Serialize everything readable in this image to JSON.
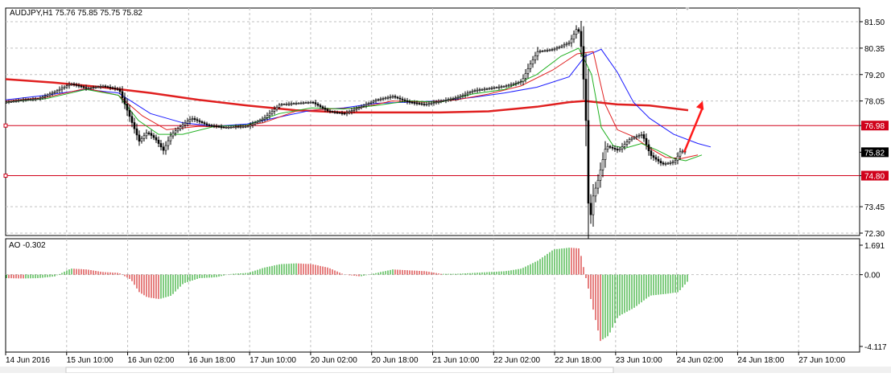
{
  "chart_data": [
    {
      "type": "candlestick",
      "title": "AUDJPY,H1  75.76 75.85 75.75 75.82",
      "symbol": "AUDJPY",
      "timeframe": "H1",
      "ohlc_header": {
        "open": 75.76,
        "high": 75.85,
        "low": 75.75,
        "close": 75.82
      },
      "ylim": [
        72.3,
        81.5
      ],
      "y_ticks": [
        "81.50",
        "80.35",
        "79.20",
        "78.05",
        "76.98",
        "75.82",
        "74.80",
        "73.45",
        "72.30"
      ],
      "current_price": "75.82",
      "levels": [
        {
          "label": "76.98",
          "value": 76.98,
          "color": "#d0021b"
        },
        {
          "label": "74.80",
          "value": 74.8,
          "color": "#d0021b"
        }
      ],
      "price_path": [
        [
          0,
          78.0
        ],
        [
          20,
          78.1
        ],
        [
          40,
          78.15
        ],
        [
          60,
          78.45
        ],
        [
          80,
          78.8
        ],
        [
          100,
          78.6
        ],
        [
          120,
          78.7
        ],
        [
          140,
          78.55
        ],
        [
          155,
          77.2
        ],
        [
          165,
          76.3
        ],
        [
          175,
          76.7
        ],
        [
          185,
          76.4
        ],
        [
          195,
          75.9
        ],
        [
          205,
          76.6
        ],
        [
          215,
          76.9
        ],
        [
          230,
          77.3
        ],
        [
          250,
          77.0
        ],
        [
          270,
          76.9
        ],
        [
          300,
          76.95
        ],
        [
          320,
          77.3
        ],
        [
          340,
          77.9
        ],
        [
          360,
          77.95
        ],
        [
          380,
          78.0
        ],
        [
          400,
          77.6
        ],
        [
          420,
          77.5
        ],
        [
          440,
          77.8
        ],
        [
          460,
          78.1
        ],
        [
          480,
          78.25
        ],
        [
          500,
          78.0
        ],
        [
          520,
          77.9
        ],
        [
          540,
          78.05
        ],
        [
          560,
          78.2
        ],
        [
          580,
          78.5
        ],
        [
          600,
          78.6
        ],
        [
          620,
          78.7
        ],
        [
          640,
          78.9
        ],
        [
          650,
          79.6
        ],
        [
          660,
          80.2
        ],
        [
          680,
          80.3
        ],
        [
          700,
          80.6
        ],
        [
          710,
          81.3
        ],
        [
          715,
          80.2
        ],
        [
          720,
          77.2
        ],
        [
          724,
          72.4
        ],
        [
          728,
          73.8
        ],
        [
          735,
          74.6
        ],
        [
          745,
          76.1
        ],
        [
          760,
          75.9
        ],
        [
          775,
          76.4
        ],
        [
          790,
          76.6
        ],
        [
          800,
          75.7
        ],
        [
          815,
          75.3
        ],
        [
          830,
          75.4
        ],
        [
          838,
          75.9
        ],
        [
          843,
          75.82
        ]
      ],
      "moving_averages": [
        {
          "color": "#e02020",
          "points": [
            [
              0,
              79.0
            ],
            [
              60,
              78.85
            ],
            [
              120,
              78.65
            ],
            [
              180,
              78.4
            ],
            [
              240,
              78.1
            ],
            [
              300,
              77.85
            ],
            [
              360,
              77.65
            ],
            [
              420,
              77.55
            ],
            [
              480,
              77.55
            ],
            [
              540,
              77.55
            ],
            [
              600,
              77.6
            ],
            [
              660,
              77.8
            ],
            [
              700,
              78.0
            ],
            [
              720,
              78.05
            ],
            [
              760,
              77.9
            ],
            [
              800,
              77.85
            ],
            [
              848,
              77.65
            ]
          ]
        },
        {
          "color": "#1a1aff",
          "points": [
            [
              0,
              78.1
            ],
            [
              50,
              78.3
            ],
            [
              100,
              78.55
            ],
            [
              140,
              78.4
            ],
            [
              180,
              77.5
            ],
            [
              220,
              77.1
            ],
            [
              260,
              76.95
            ],
            [
              300,
              77.05
            ],
            [
              340,
              77.35
            ],
            [
              380,
              77.65
            ],
            [
              420,
              77.75
            ],
            [
              460,
              77.95
            ],
            [
              500,
              78.0
            ],
            [
              540,
              78.05
            ],
            [
              580,
              78.2
            ],
            [
              620,
              78.4
            ],
            [
              660,
              78.65
            ],
            [
              700,
              79.1
            ],
            [
              720,
              80.0
            ],
            [
              740,
              80.3
            ],
            [
              760,
              79.3
            ],
            [
              780,
              78.0
            ],
            [
              800,
              77.3
            ],
            [
              830,
              76.6
            ],
            [
              860,
              76.2
            ],
            [
              876,
              76.05
            ]
          ]
        },
        {
          "color": "#e02020",
          "points": [
            [
              0,
              78.05
            ],
            [
              50,
              78.2
            ],
            [
              100,
              78.6
            ],
            [
              140,
              78.3
            ],
            [
              170,
              77.4
            ],
            [
              200,
              76.8
            ],
            [
              240,
              76.95
            ],
            [
              280,
              76.9
            ],
            [
              320,
              77.1
            ],
            [
              360,
              77.6
            ],
            [
              400,
              77.7
            ],
            [
              440,
              77.75
            ],
            [
              480,
              78.05
            ],
            [
              520,
              78.0
            ],
            [
              560,
              78.1
            ],
            [
              600,
              78.35
            ],
            [
              640,
              78.7
            ],
            [
              680,
              79.4
            ],
            [
              710,
              80.1
            ],
            [
              730,
              80.2
            ],
            [
              745,
              77.9
            ],
            [
              760,
              76.8
            ],
            [
              780,
              76.5
            ],
            [
              800,
              76.0
            ],
            [
              820,
              75.6
            ],
            [
              840,
              75.55
            ],
            [
              860,
              75.7
            ]
          ]
        },
        {
          "color": "#20b020",
          "points": [
            [
              0,
              78.0
            ],
            [
              50,
              78.15
            ],
            [
              100,
              78.55
            ],
            [
              140,
              78.3
            ],
            [
              165,
              77.2
            ],
            [
              190,
              76.6
            ],
            [
              220,
              76.6
            ],
            [
              260,
              76.95
            ],
            [
              300,
              77.0
            ],
            [
              340,
              77.5
            ],
            [
              380,
              77.75
            ],
            [
              420,
              77.7
            ],
            [
              460,
              77.85
            ],
            [
              500,
              78.05
            ],
            [
              540,
              78.0
            ],
            [
              580,
              78.35
            ],
            [
              620,
              78.55
            ],
            [
              660,
              79.2
            ],
            [
              690,
              80.0
            ],
            [
              712,
              80.35
            ],
            [
              728,
              79.2
            ],
            [
              740,
              76.9
            ],
            [
              755,
              76.1
            ],
            [
              770,
              76.0
            ],
            [
              790,
              76.2
            ],
            [
              810,
              75.9
            ],
            [
              830,
              75.55
            ],
            [
              845,
              75.45
            ],
            [
              865,
              75.7
            ]
          ]
        }
      ],
      "annotation_arrow": {
        "color": "#ff1a1a",
        "from": [
          843,
          75.82
        ],
        "to": [
          866,
          78.05
        ]
      }
    },
    {
      "type": "bar",
      "title": "AO -0.302",
      "indicator": "AO",
      "value": -0.302,
      "ylim": [
        -4.117,
        1.691
      ],
      "y_ticks": [
        "1.691",
        "0.00",
        "-4.117"
      ],
      "series": [
        {
          "up_color": "#009900",
          "down_color": "#cc0000",
          "points": [
            [
              0,
              -0.2
            ],
            [
              20,
              -0.22
            ],
            [
              40,
              -0.2
            ],
            [
              60,
              -0.1
            ],
            [
              80,
              0.35
            ],
            [
              100,
              0.3
            ],
            [
              120,
              0.15
            ],
            [
              140,
              0.1
            ],
            [
              155,
              -0.3
            ],
            [
              165,
              -1.0
            ],
            [
              175,
              -1.3
            ],
            [
              190,
              -1.4
            ],
            [
              205,
              -1.2
            ],
            [
              220,
              -0.5
            ],
            [
              240,
              -0.2
            ],
            [
              260,
              -0.15
            ],
            [
              280,
              0.05
            ],
            [
              300,
              0.1
            ],
            [
              320,
              0.4
            ],
            [
              340,
              0.6
            ],
            [
              360,
              0.65
            ],
            [
              380,
              0.6
            ],
            [
              400,
              0.4
            ],
            [
              420,
              0.0
            ],
            [
              440,
              -0.1
            ],
            [
              460,
              0.1
            ],
            [
              480,
              0.3
            ],
            [
              500,
              0.25
            ],
            [
              520,
              0.2
            ],
            [
              540,
              0.05
            ],
            [
              560,
              0.05
            ],
            [
              580,
              0.1
            ],
            [
              600,
              0.15
            ],
            [
              620,
              0.2
            ],
            [
              640,
              0.35
            ],
            [
              660,
              0.8
            ],
            [
              680,
              1.45
            ],
            [
              700,
              1.55
            ],
            [
              712,
              1.5
            ],
            [
              720,
              -0.2
            ],
            [
              730,
              -2.2
            ],
            [
              738,
              -3.8
            ],
            [
              748,
              -3.5
            ],
            [
              760,
              -2.4
            ],
            [
              780,
              -1.9
            ],
            [
              800,
              -1.2
            ],
            [
              820,
              -1.1
            ],
            [
              835,
              -1.0
            ],
            [
              848,
              -0.3
            ]
          ]
        }
      ]
    }
  ],
  "time_axis": {
    "labels": [
      "14 Jun 2016",
      "15 Jun 10:00",
      "16 Jun 02:00",
      "16 Jun 18:00",
      "17 Jun 10:00",
      "20 Jun 02:00",
      "20 Jun 18:00",
      "21 Jun 10:00",
      "22 Jun 02:00",
      "22 Jun 18:00",
      "23 Jun 10:00",
      "24 Jun 02:00",
      "24 Jun 18:00",
      "27 Jun 10:00"
    ]
  }
}
